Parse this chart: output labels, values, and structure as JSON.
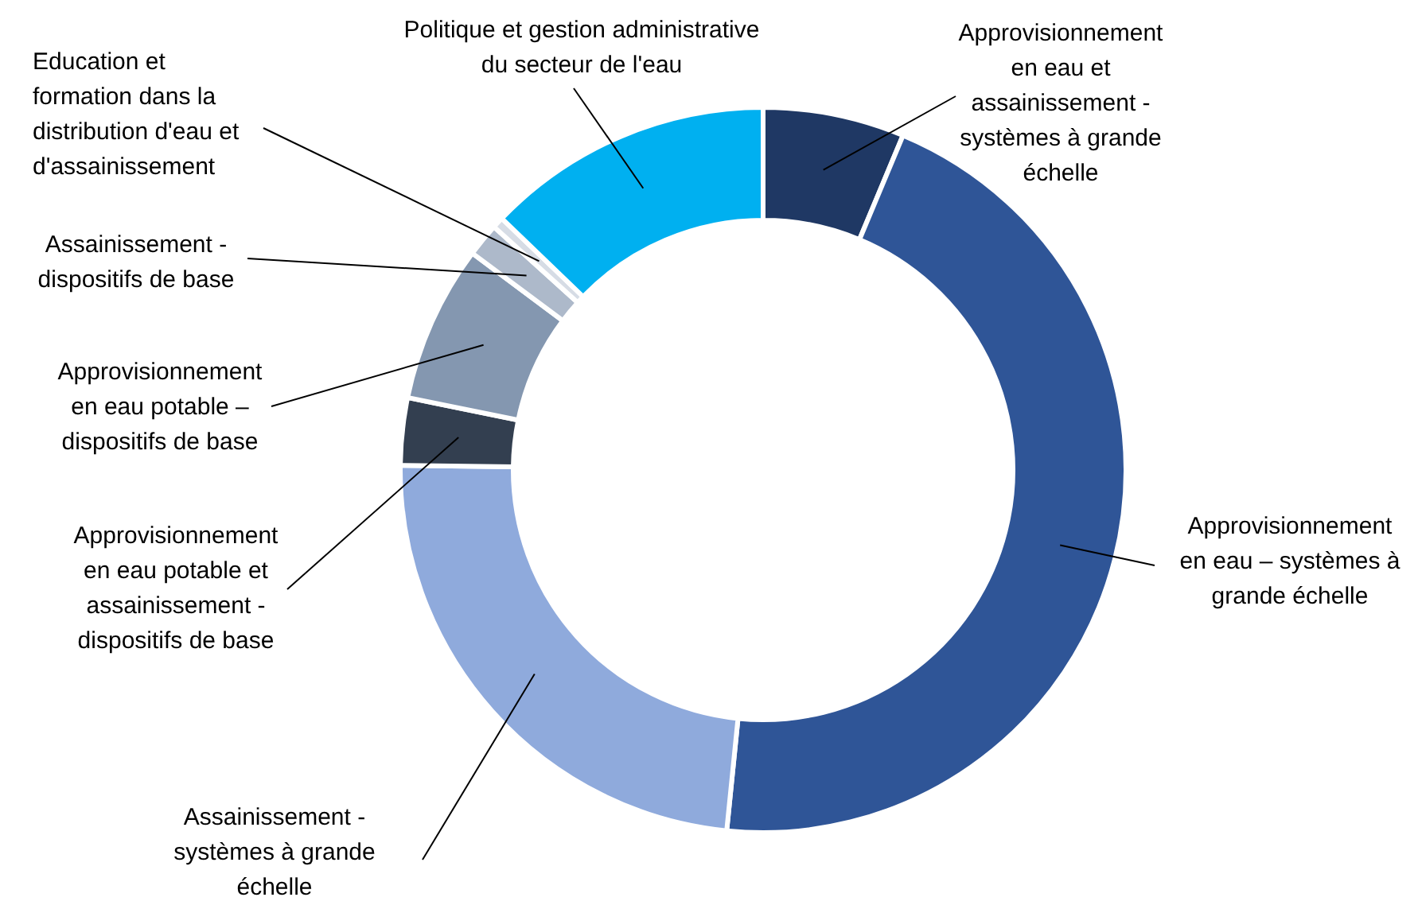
{
  "chart_data": {
    "type": "donut",
    "categories": [
      "Approvisionnement en eau et assainissement - systèmes à grande échelle",
      "Approvisionnement en eau – systèmes à grande échelle",
      "Assainissement - systèmes à grande échelle",
      "Approvisionnement en eau potable et assainissement - dispositifs de base",
      "Approvisionnement en eau potable – dispositifs de base",
      "Assainissement - dispositifs de base",
      "Education et formation dans la distribution d'eau et d'assainissement",
      "Politique et gestion administrative du secteur de l'eau"
    ],
    "values": [
      6.3,
      45.3,
      23.6,
      3,
      7,
      1.5,
      0.5,
      12.8
    ],
    "colors": [
      "#1f3864",
      "#2f5597",
      "#8faadc",
      "#333f50",
      "#8497b0",
      "#adb9ca",
      "#d6dce5",
      "#00b0f0"
    ]
  }
}
